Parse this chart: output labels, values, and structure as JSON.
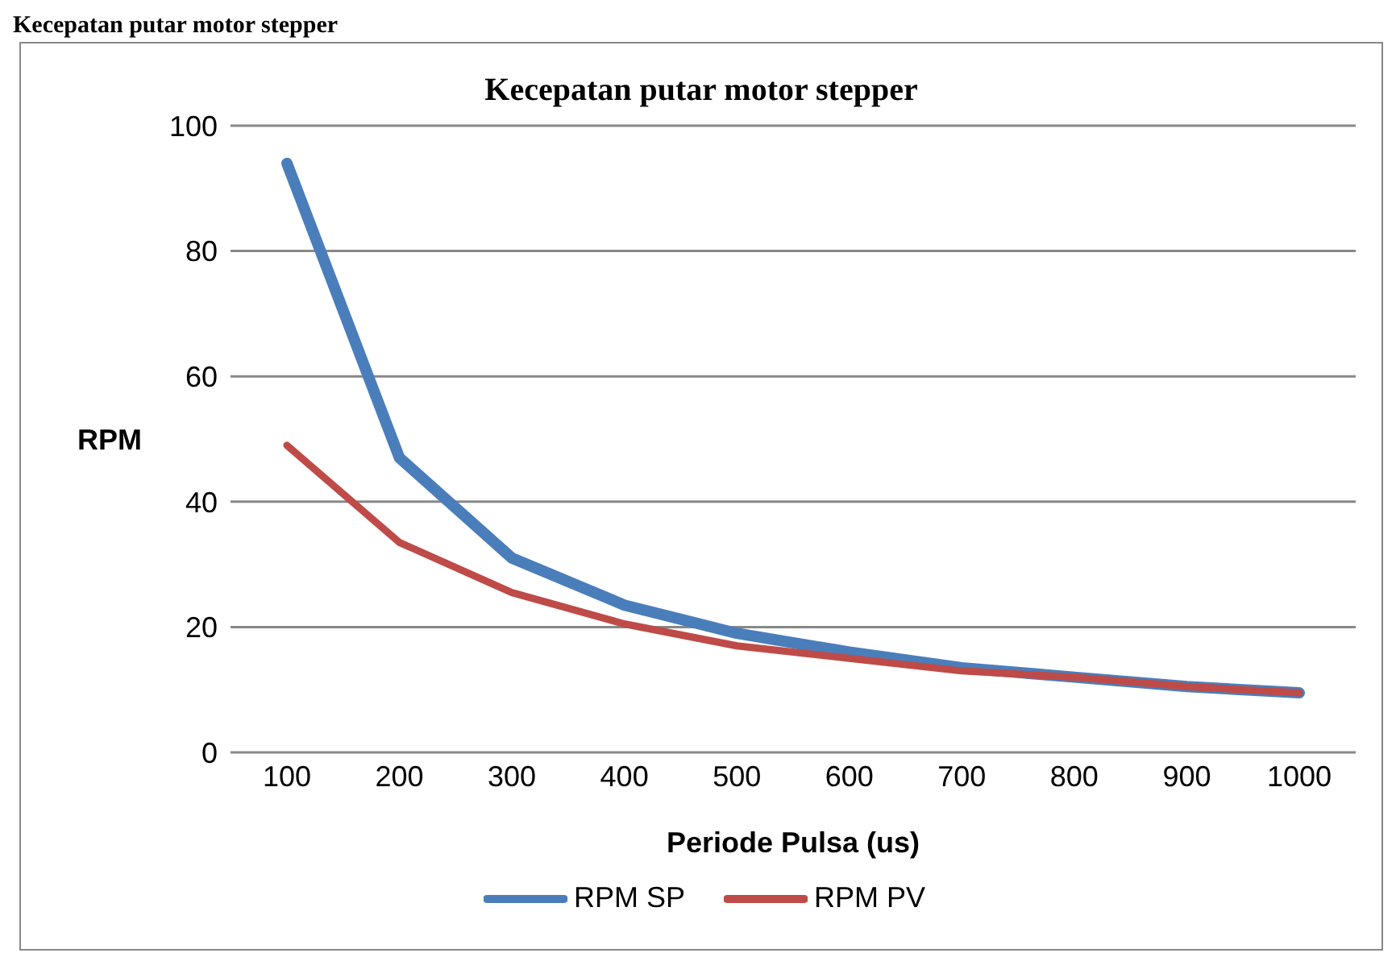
{
  "chart_data": {
    "type": "line",
    "title": "Kecepatan putar motor stepper",
    "xlabel": "Periode Pulsa (us)",
    "ylabel": "RPM",
    "annotations": [
      "Kecepatan putar motor stepper"
    ],
    "categories": [
      "100",
      "200",
      "300",
      "400",
      "500",
      "600",
      "700",
      "800",
      "900",
      "1000"
    ],
    "series": [
      {
        "name": "RPM SP",
        "color": "#4a7ebb",
        "values": [
          94,
          47,
          31,
          23.5,
          19,
          16,
          13.5,
          12,
          10.5,
          9.5
        ]
      },
      {
        "name": "RPM PV",
        "color": "#be4b48",
        "values": [
          49,
          33.5,
          25.5,
          20.5,
          17,
          15,
          13,
          12,
          10.5,
          9.5
        ]
      }
    ],
    "ylim": [
      0,
      100
    ],
    "yticks": [
      0,
      20,
      40,
      60,
      80,
      100
    ],
    "grid": "y",
    "legend": "bottom",
    "marker": "none",
    "line_style": "solid"
  }
}
